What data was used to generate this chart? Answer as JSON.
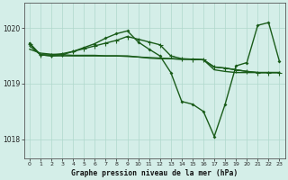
{
  "title": "Graphe pression niveau de la mer (hPa)",
  "background_color": "#d4eee8",
  "grid_color": "#b0d8cc",
  "line_color": "#1a5c1a",
  "xlim": [
    -0.5,
    23.5
  ],
  "ylim": [
    1017.65,
    1020.45
  ],
  "yticks": [
    1018,
    1019,
    1020
  ],
  "xticks": [
    0,
    1,
    2,
    3,
    4,
    5,
    6,
    7,
    8,
    9,
    10,
    11,
    12,
    13,
    14,
    15,
    16,
    17,
    18,
    19,
    20,
    21,
    22,
    23
  ],
  "line_main": {
    "x": [
      0,
      1,
      2,
      3,
      4,
      5,
      6,
      7,
      8,
      9,
      10,
      11,
      12,
      13,
      14,
      15,
      16,
      17,
      18,
      19,
      20,
      21,
      22,
      23
    ],
    "y": [
      1019.73,
      1019.52,
      1019.5,
      1019.52,
      1019.58,
      1019.65,
      1019.72,
      1019.82,
      1019.9,
      1019.95,
      1019.75,
      1019.62,
      1019.5,
      1019.2,
      1018.68,
      1018.63,
      1018.5,
      1018.05,
      1018.63,
      1019.32,
      1019.38,
      1020.05,
      1020.1,
      1019.4
    ]
  },
  "line_flat1": {
    "x": [
      0,
      1,
      2,
      3,
      4,
      5,
      6,
      7,
      8,
      9,
      10,
      11,
      12,
      13,
      14,
      15,
      16,
      17,
      18,
      19,
      20,
      21,
      22,
      23
    ],
    "y": [
      1019.62,
      1019.55,
      1019.53,
      1019.52,
      1019.51,
      1019.51,
      1019.51,
      1019.5,
      1019.5,
      1019.49,
      1019.48,
      1019.47,
      1019.46,
      1019.45,
      1019.44,
      1019.44,
      1019.43,
      1019.3,
      1019.28,
      1019.25,
      1019.22,
      1019.2,
      1019.2,
      1019.2
    ]
  },
  "line_diag1": {
    "x": [
      0,
      1,
      2,
      3,
      4,
      5,
      6,
      7,
      8,
      9,
      10,
      11,
      12,
      13,
      14,
      15,
      16,
      17,
      18,
      19,
      20,
      21,
      22,
      23
    ],
    "y": [
      1019.72,
      1019.52,
      1019.52,
      1019.54,
      1019.58,
      1019.63,
      1019.68,
      1019.73,
      1019.78,
      1019.85,
      1019.8,
      1019.75,
      1019.7,
      1019.5,
      1019.45,
      1019.44,
      1019.43,
      1019.3,
      1019.28,
      1019.25,
      1019.22,
      1019.2,
      1019.2,
      1019.2
    ]
  },
  "line_flat2": {
    "x": [
      0,
      1,
      2,
      3,
      4,
      5,
      6,
      7,
      8,
      9,
      10,
      11,
      12,
      13,
      14,
      15,
      16,
      17,
      18,
      19,
      20,
      21,
      22,
      23
    ],
    "y": [
      1019.68,
      1019.52,
      1019.5,
      1019.5,
      1019.5,
      1019.5,
      1019.5,
      1019.5,
      1019.5,
      1019.5,
      1019.48,
      1019.46,
      1019.45,
      1019.45,
      1019.44,
      1019.44,
      1019.43,
      1019.25,
      1019.22,
      1019.2,
      1019.2,
      1019.2,
      1019.2,
      1019.2
    ]
  }
}
